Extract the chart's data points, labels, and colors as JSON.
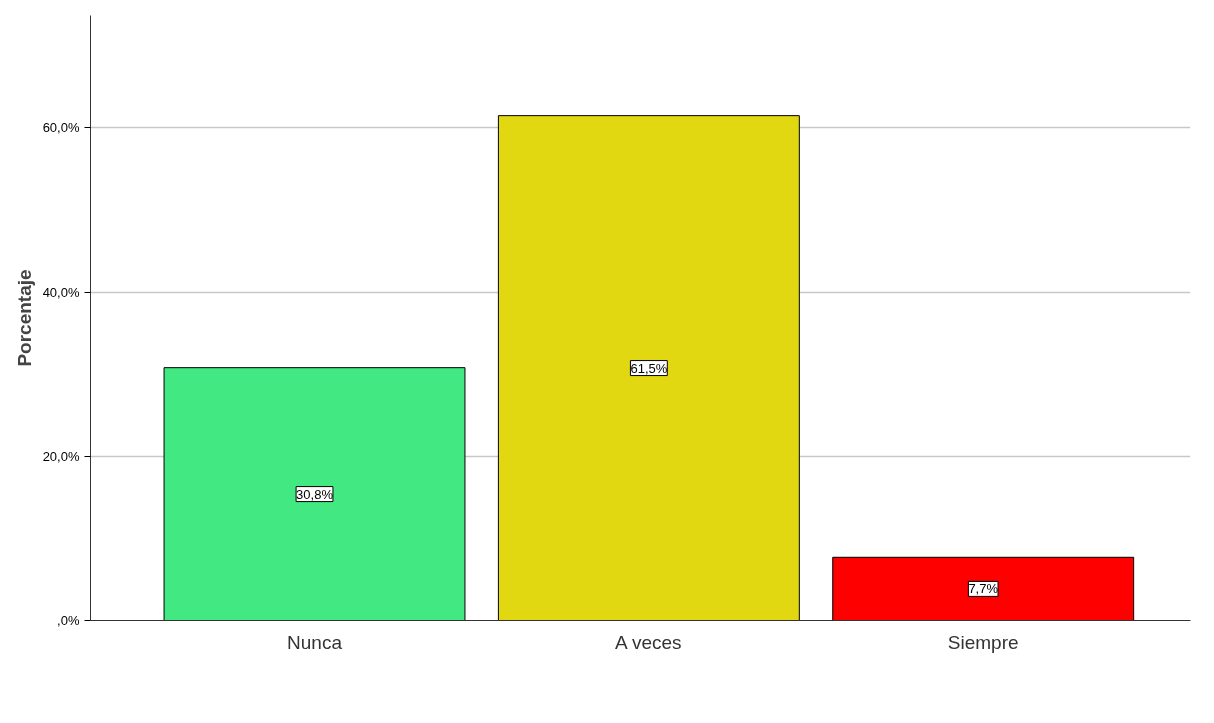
{
  "chart_data": {
    "type": "bar",
    "ylabel": "Porcentaje",
    "categories": [
      "Nunca",
      "A veces",
      "Siempre"
    ],
    "values": [
      30.8,
      61.5,
      7.7
    ],
    "colors": [
      "#42e882",
      "#e1d812",
      "#fe0000"
    ],
    "value_labels": [
      "30,8%",
      "61,5%",
      "7,7%"
    ],
    "ylim": [
      0,
      73.7
    ],
    "yticks": [
      {
        "value": 0,
        "label": ",0%"
      },
      {
        "value": 20,
        "label": "20,0%"
      },
      {
        "value": 40,
        "label": "40,0%"
      },
      {
        "value": 60,
        "label": "60,0%"
      }
    ],
    "grid": "y"
  }
}
